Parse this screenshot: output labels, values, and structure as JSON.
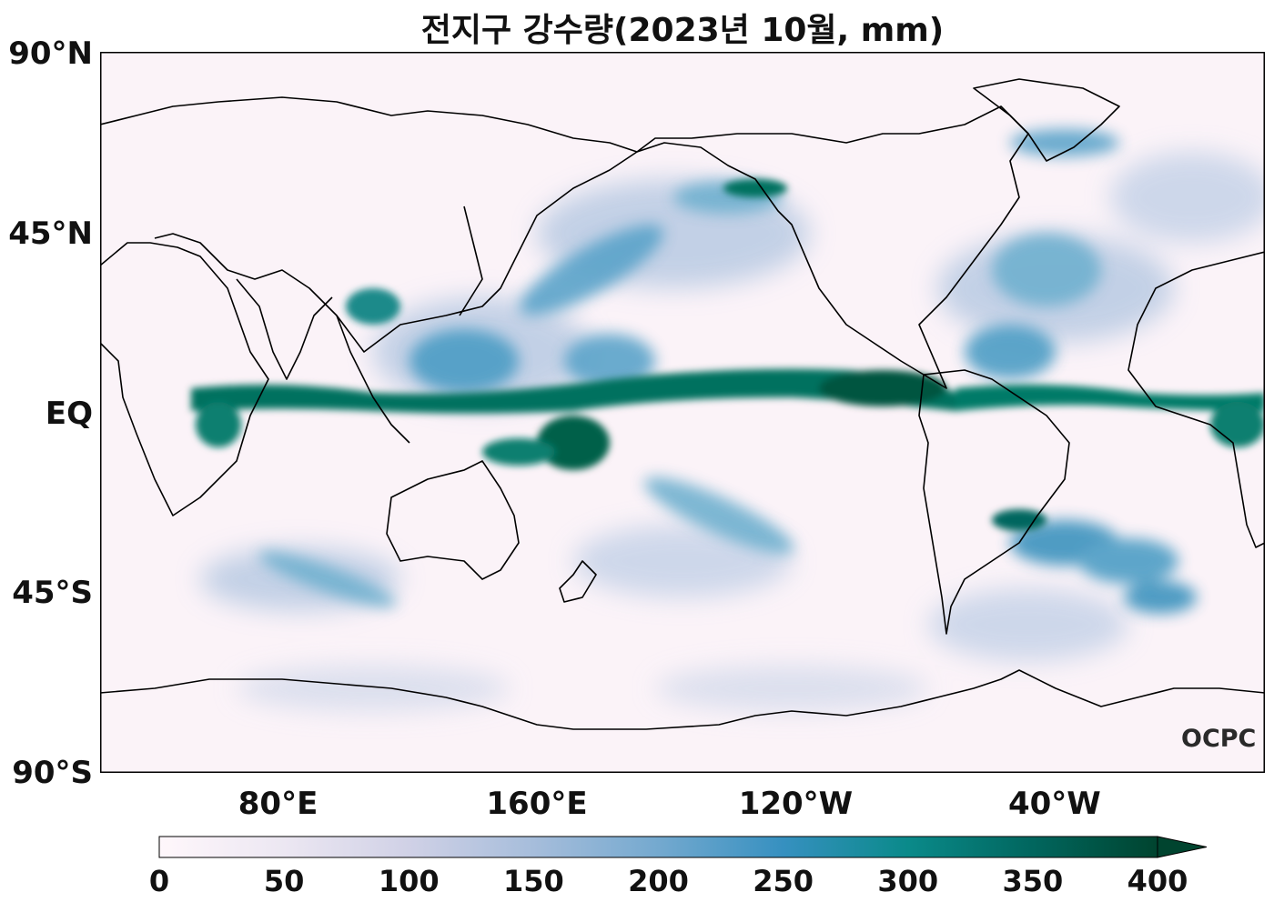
{
  "title": "전지구 강수량(2023년 10월, mm)",
  "lat_ticks": [
    {
      "label": "90°N",
      "lat": 90
    },
    {
      "label": "45°N",
      "lat": 45
    },
    {
      "label": "EQ",
      "lat": 0
    },
    {
      "label": "45°S",
      "lat": -45
    },
    {
      "label": "90°S",
      "lat": -90
    }
  ],
  "lon_ticks": [
    {
      "label": "80°E",
      "lon": 80
    },
    {
      "label": "160°E",
      "lon": 160
    },
    {
      "label": "120°W",
      "lon": 240
    },
    {
      "label": "40°W",
      "lon": 320
    }
  ],
  "map_extent": {
    "lon_min": 25,
    "lon_max": 385,
    "lat_min": -90,
    "lat_max": 90
  },
  "colorbar": {
    "min": 0,
    "max": 400,
    "extend": "max",
    "ticks": [
      "0",
      "50",
      "100",
      "150",
      "200",
      "250",
      "300",
      "350",
      "400"
    ],
    "colors": [
      "#fff7fb",
      "#ece7f2",
      "#d0d1e6",
      "#a6bddb",
      "#74a9cf",
      "#3690c0",
      "#0a8a8a",
      "#01665e",
      "#00442f"
    ]
  },
  "watermark": "OCPC"
}
